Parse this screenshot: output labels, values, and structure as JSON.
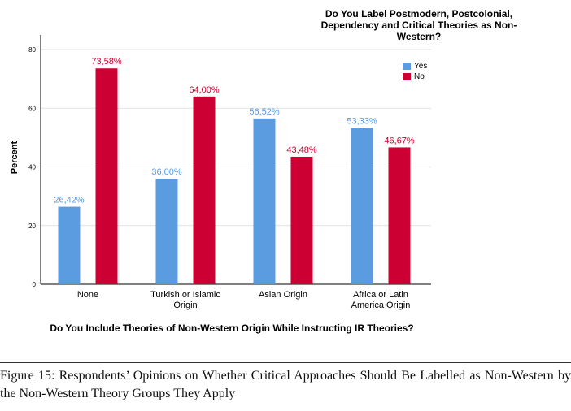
{
  "chart_data": {
    "type": "bar",
    "categories": [
      "None",
      "Turkish or Islamic\nOrigin",
      "Asian Origin",
      "Africa or Latin\nAmerica Origin"
    ],
    "series": [
      {
        "name": "Yes",
        "color": "#5b9be0",
        "values": [
          26.42,
          36.0,
          56.52,
          53.33
        ],
        "labels": [
          "26,42%",
          "36,00%",
          "56,52%",
          "53,33%"
        ]
      },
      {
        "name": "No",
        "color": "#cc0033",
        "values": [
          73.58,
          64.0,
          43.48,
          46.67
        ],
        "labels": [
          "73,58%",
          "64,00%",
          "43,48%",
          "46,67%"
        ]
      }
    ],
    "ylim": [
      0,
      85
    ],
    "yticks": [
      "0",
      "20",
      "40",
      "60",
      "80"
    ],
    "ylabel": "Percent",
    "xlabel": "Do You Include Theories of Non-Western Origin While Instructing IR Theories?",
    "legend_title": "Do You Label Postmodern, Postcolonial, Dependency and Critical Theories as Non-Western?",
    "legend_position": "top-right",
    "grid": true
  },
  "caption": "Figure 15: Respondents’ Opinions on Whether Critical Approaches Should Be Labelled as Non-Western by the Non-Western Theory Groups They Apply"
}
